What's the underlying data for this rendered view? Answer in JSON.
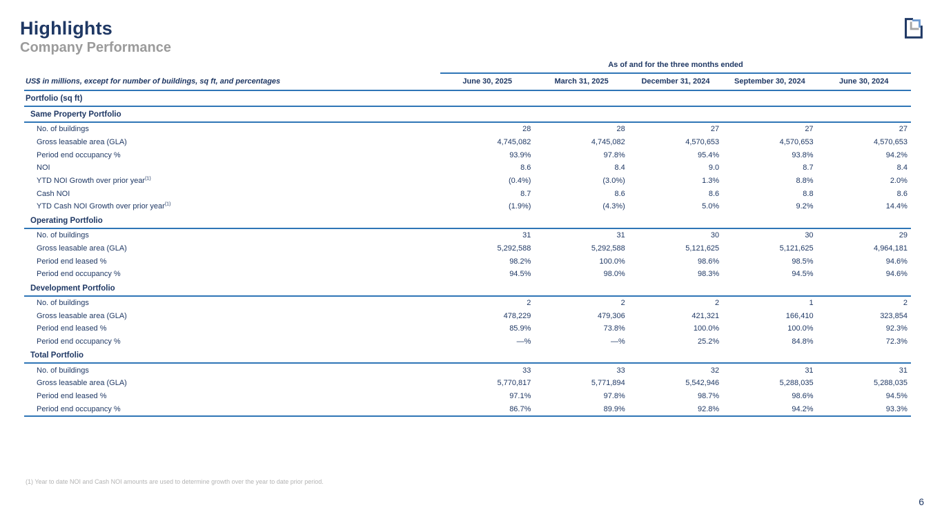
{
  "page": {
    "title": "Highlights",
    "subtitle": "Company Performance",
    "footnote": "(1) Year to date NOI and Cash NOI amounts are used to determine growth over the year to date prior period.",
    "page_number": "6"
  },
  "colors": {
    "navy": "#1f3864",
    "rule": "#2e75b6",
    "subtitle-gray": "#9b9b9b",
    "footnote-gray": "#b3b3b3",
    "logo-gray": "#a6a6a6",
    "logo-lightblue": "#6f9bd1"
  },
  "table": {
    "span_header": "As of and for the three months ended",
    "row_label_header": "US$ in millions, except for number of buildings, sq ft, and percentages",
    "columns": [
      "June 30, 2025",
      "March 31, 2025",
      "December 31, 2024",
      "September 30, 2024",
      "June 30, 2024"
    ],
    "sections": [
      {
        "title": "Portfolio (sq ft)",
        "level": 0,
        "rows": []
      },
      {
        "title": "Same Property Portfolio",
        "level": 1,
        "rows": [
          {
            "label": "No. of buildings",
            "values": [
              "28",
              "28",
              "27",
              "27",
              "27"
            ]
          },
          {
            "label": "Gross leasable area (GLA)",
            "values": [
              "4,745,082",
              "4,745,082",
              "4,570,653",
              "4,570,653",
              "4,570,653"
            ]
          },
          {
            "label": "Period end occupancy %",
            "values": [
              "93.9%",
              "97.8%",
              "95.4%",
              "93.8%",
              "94.2%"
            ]
          },
          {
            "label": "NOI",
            "values": [
              "8.6",
              "8.4",
              "9.0",
              "8.7",
              "8.4"
            ]
          },
          {
            "label": "YTD NOI Growth over prior year",
            "sup": "(1)",
            "values": [
              "(0.4%)",
              "(3.0%)",
              "1.3%",
              "8.8%",
              "2.0%"
            ]
          },
          {
            "label": "Cash NOI",
            "values": [
              "8.7",
              "8.6",
              "8.6",
              "8.8",
              "8.6"
            ]
          },
          {
            "label": "YTD Cash NOI Growth over prior year",
            "sup": "(1)",
            "values": [
              "(1.9%)",
              "(4.3%)",
              "5.0%",
              "9.2%",
              "14.4%"
            ]
          }
        ]
      },
      {
        "title": "Operating Portfolio",
        "level": 1,
        "rows": [
          {
            "label": "No. of buildings",
            "values": [
              "31",
              "31",
              "30",
              "30",
              "29"
            ]
          },
          {
            "label": "Gross leasable area (GLA)",
            "values": [
              "5,292,588",
              "5,292,588",
              "5,121,625",
              "5,121,625",
              "4,964,181"
            ]
          },
          {
            "label": "Period end leased %",
            "values": [
              "98.2%",
              "100.0%",
              "98.6%",
              "98.5%",
              "94.6%"
            ]
          },
          {
            "label": "Period end occupancy %",
            "values": [
              "94.5%",
              "98.0%",
              "98.3%",
              "94.5%",
              "94.6%"
            ]
          }
        ]
      },
      {
        "title": "Development Portfolio",
        "level": 1,
        "rows": [
          {
            "label": "No. of buildings",
            "values": [
              "2",
              "2",
              "2",
              "1",
              "2"
            ]
          },
          {
            "label": "Gross leasable area (GLA)",
            "values": [
              "478,229",
              "479,306",
              "421,321",
              "166,410",
              "323,854"
            ]
          },
          {
            "label": "Period end leased %",
            "values": [
              "85.9%",
              "73.8%",
              "100.0%",
              "100.0%",
              "92.3%"
            ]
          },
          {
            "label": "Period end occupancy %",
            "values": [
              "—%",
              "—%",
              "25.2%",
              "84.8%",
              "72.3%"
            ]
          }
        ]
      },
      {
        "title": "Total Portfolio",
        "level": 1,
        "rows": [
          {
            "label": "No. of buildings",
            "values": [
              "33",
              "33",
              "32",
              "31",
              "31"
            ]
          },
          {
            "label": "Gross leasable area (GLA)",
            "values": [
              "5,770,817",
              "5,771,894",
              "5,542,946",
              "5,288,035",
              "5,288,035"
            ]
          },
          {
            "label": "Period end leased %",
            "values": [
              "97.1%",
              "97.8%",
              "98.7%",
              "98.6%",
              "94.5%"
            ]
          },
          {
            "label": "Period end occupancy %",
            "values": [
              "86.7%",
              "89.9%",
              "92.8%",
              "94.2%",
              "93.3%"
            ]
          }
        ]
      }
    ]
  }
}
